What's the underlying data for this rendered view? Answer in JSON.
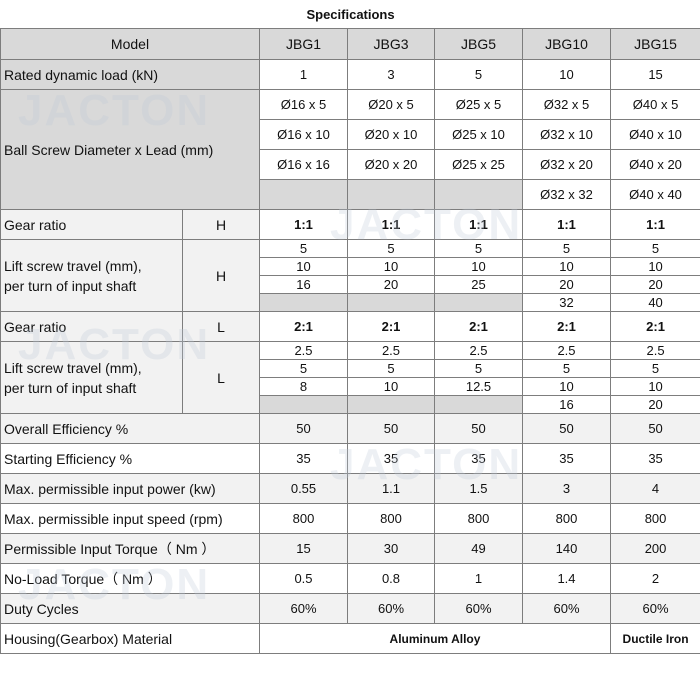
{
  "title": "Specifications",
  "watermark": "JACTON",
  "model": {
    "label": "Model",
    "names": [
      "JBG1",
      "JBG3",
      "JBG5",
      "JBG10",
      "JBG15"
    ]
  },
  "rated_load": {
    "label": "Rated dynamic load (kN)",
    "values": [
      "1",
      "3",
      "5",
      "10",
      "15"
    ]
  },
  "ball_screw": {
    "label": "Ball Screw Diameter x Lead (mm)",
    "rows": [
      [
        "Ø16 x 5",
        "Ø20 x 5",
        "Ø25 x 5",
        "Ø32 x 5",
        "Ø40 x 5"
      ],
      [
        "Ø16 x 10",
        "Ø20 x 10",
        "Ø25 x 10",
        "Ø32 x 10",
        "Ø40 x 10"
      ],
      [
        "Ø16 x 16",
        "Ø20 x 20",
        "Ø25 x 25",
        "Ø32 x 20",
        "Ø40 x 20"
      ],
      [
        "",
        "",
        "",
        "Ø32 x 32",
        "Ø40 x 40"
      ]
    ]
  },
  "gear_h": {
    "label": "Gear ratio",
    "code": "H",
    "values": [
      "1:1",
      "1:1",
      "1:1",
      "1:1",
      "1:1"
    ]
  },
  "travel_h": {
    "label_line1": "Lift screw travel (mm),",
    "label_line2": "per turn of input shaft",
    "code": "H",
    "rows": [
      [
        "5",
        "5",
        "5",
        "5",
        "5"
      ],
      [
        "10",
        "10",
        "10",
        "10",
        "10"
      ],
      [
        "16",
        "20",
        "25",
        "20",
        "20"
      ],
      [
        "",
        "",
        "",
        "32",
        "40"
      ]
    ]
  },
  "gear_l": {
    "label": "Gear ratio",
    "code": "L",
    "values": [
      "2:1",
      "2:1",
      "2:1",
      "2:1",
      "2:1"
    ]
  },
  "travel_l": {
    "label_line1": "Lift screw travel (mm),",
    "label_line2": "per turn of input shaft",
    "code": "L",
    "rows": [
      [
        "2.5",
        "2.5",
        "2.5",
        "2.5",
        "2.5"
      ],
      [
        "5",
        "5",
        "5",
        "5",
        "5"
      ],
      [
        "8",
        "10",
        "12.5",
        "10",
        "10"
      ],
      [
        "",
        "",
        "",
        "16",
        "20"
      ]
    ]
  },
  "specs": [
    {
      "label": "Overall Efficiency %",
      "values": [
        "50",
        "50",
        "50",
        "50",
        "50"
      ]
    },
    {
      "label": "Starting Efficiency %",
      "values": [
        "35",
        "35",
        "35",
        "35",
        "35"
      ]
    },
    {
      "label": "Max. permissible input power (kw)",
      "values": [
        "0.55",
        "1.1",
        "1.5",
        "3",
        "4"
      ]
    },
    {
      "label": "Max. permissible input speed (rpm)",
      "values": [
        "800",
        "800",
        "800",
        "800",
        "800"
      ]
    },
    {
      "label": "Permissible Input Torque（ Nm ）",
      "values": [
        "15",
        "30",
        "49",
        "140",
        "200"
      ]
    },
    {
      "label": "No-Load Torque（ Nm ）",
      "values": [
        "0.5",
        "0.8",
        "1",
        "1.4",
        "2"
      ]
    },
    {
      "label": "Duty Cycles",
      "values": [
        "60%",
        "60%",
        "60%",
        "60%",
        "60%"
      ]
    }
  ],
  "housing": {
    "label": "Housing(Gearbox) Material",
    "aluminum": "Aluminum Alloy",
    "ductile": "Ductile Iron"
  }
}
